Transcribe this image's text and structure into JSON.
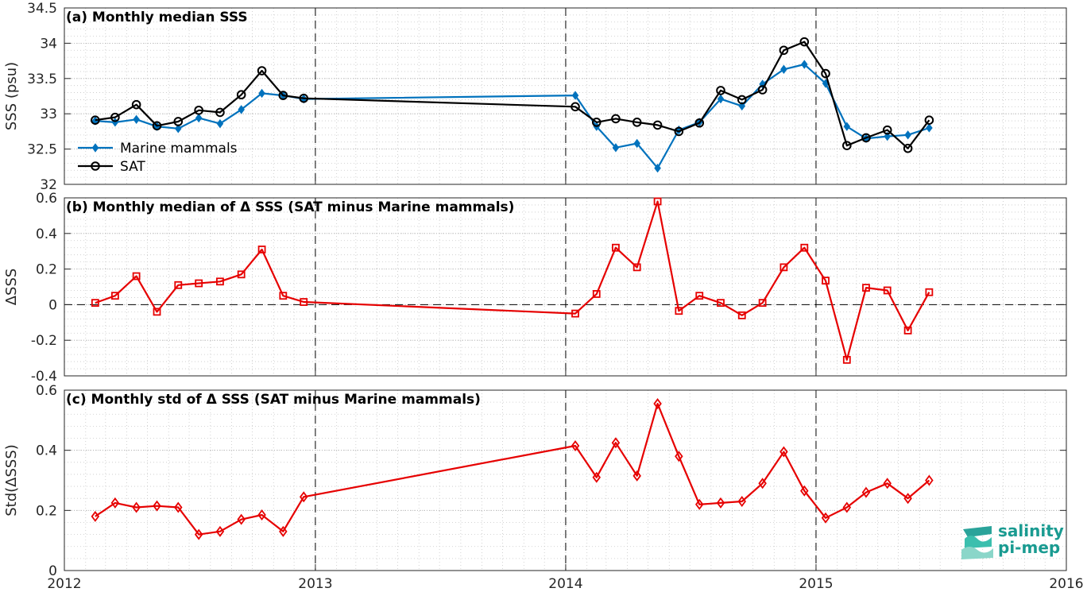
{
  "chart_data": [
    {
      "type": "line",
      "title": "(a) Monthly median SSS",
      "ylabel": "SSS (psu)",
      "xlim": [
        "2012-01-01",
        "2016-01-01"
      ],
      "ylim": [
        32,
        34.5
      ],
      "yticks": [
        32,
        32.5,
        33,
        33.5,
        34,
        34.5
      ],
      "ytick_labels": [
        "32",
        "32.5",
        "33",
        "33.5",
        "34",
        "34.5"
      ],
      "legend": "lower-left",
      "grid": true,
      "series": [
        {
          "name": "Marine mammals",
          "color": "#0072bd",
          "marker": "diamond",
          "x": [
            "2012-02-15",
            "2012-03-15",
            "2012-04-15",
            "2012-05-15",
            "2012-06-15",
            "2012-07-15",
            "2012-08-15",
            "2012-09-15",
            "2012-10-15",
            "2012-11-15",
            "2012-12-15",
            "2014-01-15",
            "2014-02-15",
            "2014-03-15",
            "2014-04-15",
            "2014-05-15",
            "2014-06-15",
            "2014-07-15",
            "2014-08-15",
            "2014-09-15",
            "2014-10-15",
            "2014-11-15",
            "2014-12-15",
            "2015-01-15",
            "2015-02-15",
            "2015-03-15",
            "2015-04-15",
            "2015-05-15",
            "2015-06-15"
          ],
          "y": [
            32.9,
            32.88,
            32.92,
            32.82,
            32.79,
            32.94,
            32.86,
            33.06,
            33.29,
            33.26,
            33.21,
            33.26,
            32.82,
            32.52,
            32.58,
            32.23,
            32.77,
            32.88,
            33.21,
            33.11,
            33.42,
            33.63,
            33.7,
            33.43,
            32.82,
            32.65,
            32.68,
            32.7,
            32.8
          ]
        },
        {
          "name": "SAT",
          "color": "#000000",
          "marker": "circle",
          "x": [
            "2012-02-15",
            "2012-03-15",
            "2012-04-15",
            "2012-05-15",
            "2012-06-15",
            "2012-07-15",
            "2012-08-15",
            "2012-09-15",
            "2012-10-15",
            "2012-11-15",
            "2012-12-15",
            "2014-01-15",
            "2014-02-15",
            "2014-03-15",
            "2014-04-15",
            "2014-05-15",
            "2014-06-15",
            "2014-07-15",
            "2014-08-15",
            "2014-09-15",
            "2014-10-15",
            "2014-11-15",
            "2014-12-15",
            "2015-01-15",
            "2015-02-15",
            "2015-03-15",
            "2015-04-15",
            "2015-05-15",
            "2015-06-15"
          ],
          "y": [
            32.91,
            32.95,
            33.13,
            32.83,
            32.89,
            33.05,
            33.02,
            33.27,
            33.61,
            33.26,
            33.22,
            33.1,
            32.88,
            32.93,
            32.88,
            32.84,
            32.75,
            32.87,
            33.33,
            33.2,
            33.34,
            33.9,
            34.02,
            33.57,
            32.55,
            32.66,
            32.77,
            32.51,
            32.91
          ]
        }
      ]
    },
    {
      "type": "line",
      "title": "(b) Monthly median of Δ SSS (SAT minus Marine mammals)",
      "ylabel": "ΔSSS",
      "xlim": [
        "2012-01-01",
        "2016-01-01"
      ],
      "ylim": [
        -0.4,
        0.6
      ],
      "yticks": [
        -0.4,
        -0.2,
        0,
        0.2,
        0.4,
        0.6
      ],
      "ytick_labels": [
        "-0.4",
        "-0.2",
        "0",
        "0.2",
        "0.4",
        "0.6"
      ],
      "grid": true,
      "zero_line": true,
      "series": [
        {
          "color": "#e60000",
          "marker": "square",
          "x": [
            "2012-02-15",
            "2012-03-15",
            "2012-04-15",
            "2012-05-15",
            "2012-06-15",
            "2012-07-15",
            "2012-08-15",
            "2012-09-15",
            "2012-10-15",
            "2012-11-15",
            "2012-12-15",
            "2014-01-15",
            "2014-02-15",
            "2014-03-15",
            "2014-04-15",
            "2014-05-15",
            "2014-06-15",
            "2014-07-15",
            "2014-08-15",
            "2014-09-15",
            "2014-10-15",
            "2014-11-15",
            "2014-12-15",
            "2015-01-15",
            "2015-02-15",
            "2015-03-15",
            "2015-04-15",
            "2015-05-15",
            "2015-06-15"
          ],
          "y": [
            0.01,
            0.05,
            0.16,
            -0.04,
            0.11,
            0.12,
            0.13,
            0.17,
            0.31,
            0.05,
            0.015,
            -0.05,
            0.06,
            0.32,
            0.21,
            0.58,
            -0.035,
            0.05,
            0.01,
            -0.06,
            0.01,
            0.21,
            0.32,
            0.135,
            -0.31,
            0.095,
            0.08,
            -0.145,
            0.07
          ]
        }
      ]
    },
    {
      "type": "line",
      "title": "(c) Monthly std of Δ SSS (SAT minus Marine mammals)",
      "ylabel": "Std(ΔSSS)",
      "xlim": [
        "2012-01-01",
        "2016-01-01"
      ],
      "ylim": [
        0,
        0.6
      ],
      "yticks": [
        0,
        0.2,
        0.4,
        0.6
      ],
      "ytick_labels": [
        "0",
        "0.2",
        "0.4",
        "0.6"
      ],
      "xticks": [
        "2012-01-01",
        "2013-01-01",
        "2014-01-01",
        "2015-01-01",
        "2016-01-01"
      ],
      "xtick_labels": [
        "2012",
        "2013",
        "2014",
        "2015",
        "2016"
      ],
      "grid": true,
      "series": [
        {
          "color": "#e60000",
          "marker": "diamond",
          "x": [
            "2012-02-15",
            "2012-03-15",
            "2012-04-15",
            "2012-05-15",
            "2012-06-15",
            "2012-07-15",
            "2012-08-15",
            "2012-09-15",
            "2012-10-15",
            "2012-11-15",
            "2012-12-15",
            "2014-01-15",
            "2014-02-15",
            "2014-03-15",
            "2014-04-15",
            "2014-05-15",
            "2014-06-15",
            "2014-07-15",
            "2014-08-15",
            "2014-09-15",
            "2014-10-15",
            "2014-11-15",
            "2014-12-15",
            "2015-01-15",
            "2015-02-15",
            "2015-03-15",
            "2015-04-15",
            "2015-05-15",
            "2015-06-15"
          ],
          "y": [
            0.18,
            0.225,
            0.21,
            0.215,
            0.21,
            0.12,
            0.13,
            0.17,
            0.185,
            0.13,
            0.245,
            0.415,
            0.31,
            0.425,
            0.315,
            0.555,
            0.38,
            0.22,
            0.225,
            0.23,
            0.29,
            0.395,
            0.265,
            0.175,
            0.21,
            0.26,
            0.29,
            0.24,
            0.3
          ]
        }
      ]
    }
  ],
  "logo": {
    "line1": "salinity",
    "line2": "pi-mep"
  }
}
